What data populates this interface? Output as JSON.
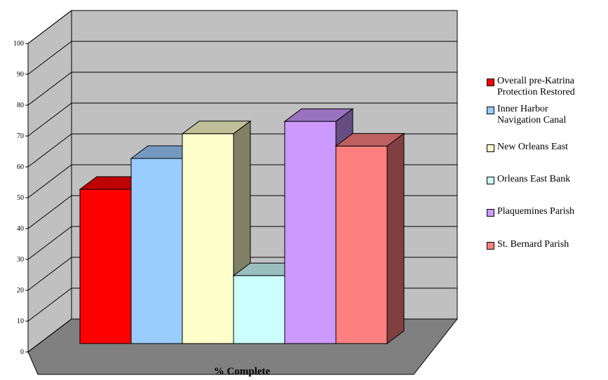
{
  "chart_data": {
    "type": "bar",
    "xlabel": "% Complete",
    "ylabel": "",
    "ylim": [
      0,
      100
    ],
    "yticks": [
      "0",
      "10",
      "20",
      "30",
      "40",
      "50",
      "60",
      "70",
      "80",
      "90",
      "100"
    ],
    "grid": true,
    "legend_position": "right",
    "series": [
      {
        "name": "Overall pre-Katrina\nProtection Restored",
        "value": 50,
        "color": "#ff0000"
      },
      {
        "name": "Inner Harbor\nNavigation Canal",
        "value": 60,
        "color": "#99ccff"
      },
      {
        "name": "New Orleans East",
        "value": 68,
        "color": "#ffffcc"
      },
      {
        "name": "Orleans East Bank",
        "value": 22,
        "color": "#ccffff"
      },
      {
        "name": "Plaquemines Parish",
        "value": 72,
        "color": "#cc99ff"
      },
      {
        "name": "St. Bernard Parish",
        "value": 64,
        "color": "#ff8080"
      }
    ],
    "colors": {
      "back_wall": "#c0c0c0",
      "side_wall": "#c0c0c0",
      "floor": "#808080",
      "gridline": "#000000"
    }
  }
}
